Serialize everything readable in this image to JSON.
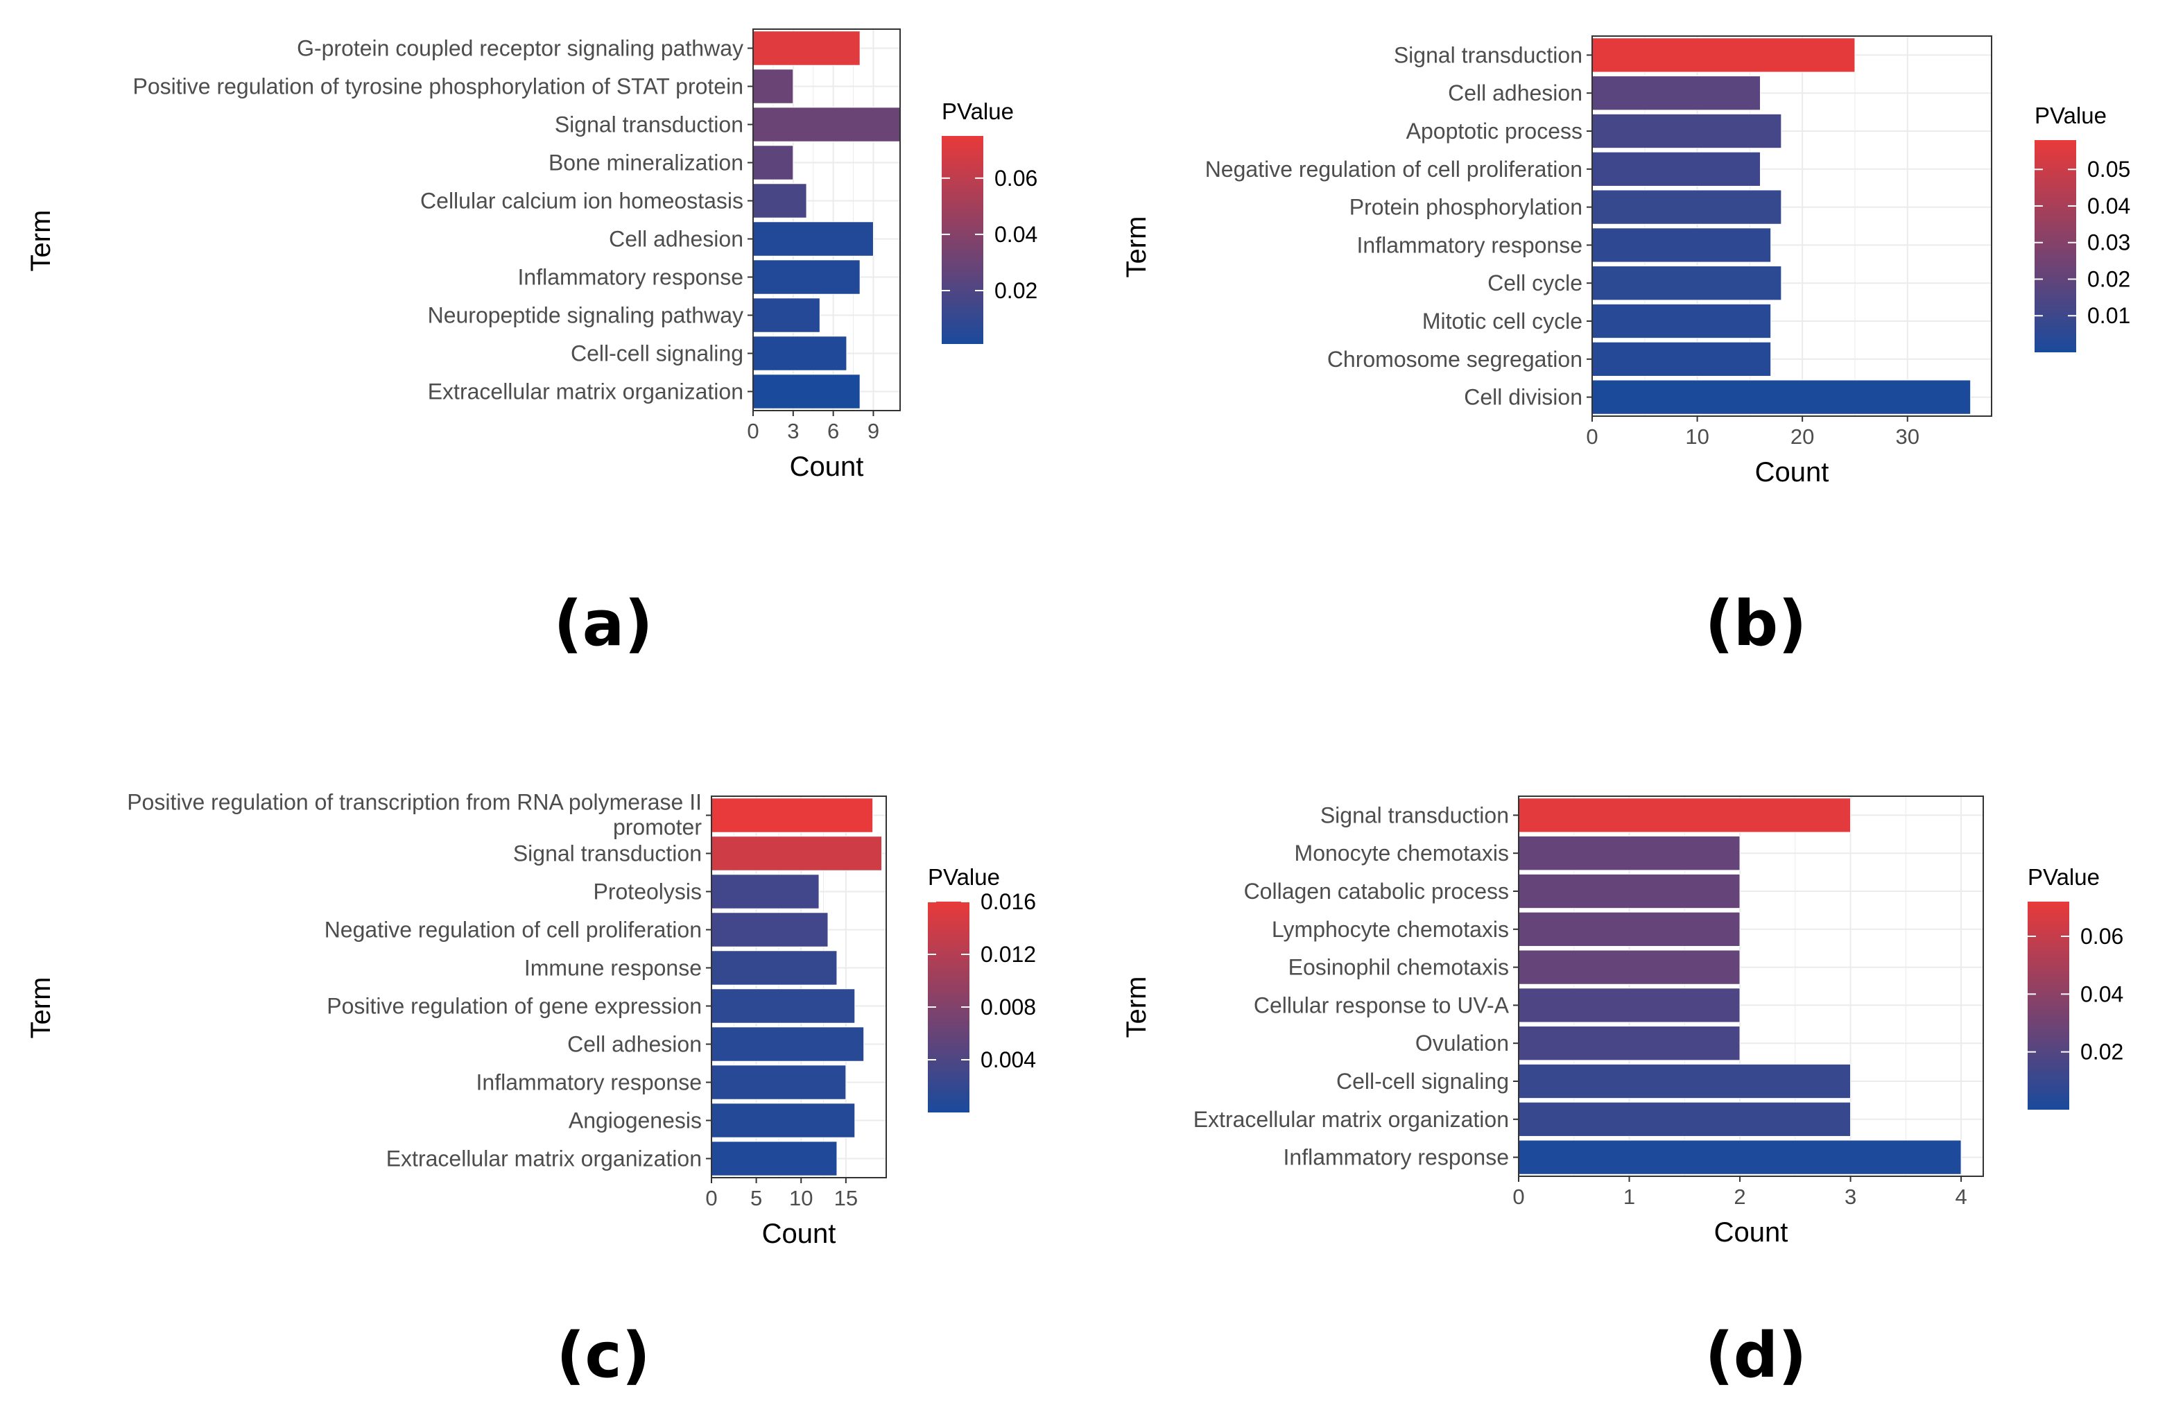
{
  "chart_data": [
    {
      "id": "a",
      "type": "bar",
      "orientation": "horizontal",
      "panel_label": "(a)",
      "xlabel": "Count",
      "ylabel": "Term",
      "xlim": [
        0,
        11
      ],
      "xticks": [
        0,
        3,
        6,
        9
      ],
      "grid": true,
      "legend": {
        "title": "PValue",
        "placement": "right",
        "ticks": [
          "0.06",
          "0.04",
          "0.02"
        ],
        "tick_values": [
          0.06,
          0.04,
          0.02
        ],
        "range": [
          0.001,
          0.075
        ]
      },
      "categories": [
        "G-protein coupled receptor signaling pathway",
        "Positive regulation of tyrosine phosphorylation of STAT protein",
        "Signal transduction",
        "Bone mineralization",
        "Cellular calcium ion homeostasis",
        "Cell adhesion",
        "Inflammatory response",
        "Neuropeptide signaling pathway",
        "Cell-cell signaling",
        "Extracellular matrix organization"
      ],
      "values": [
        8,
        3,
        11,
        3,
        4,
        9,
        8,
        5,
        7,
        8
      ],
      "pvalues": [
        0.072,
        0.03,
        0.03,
        0.025,
        0.018,
        0.004,
        0.004,
        0.005,
        0.003,
        0.001
      ]
    },
    {
      "id": "b",
      "type": "bar",
      "orientation": "horizontal",
      "panel_label": "(b)",
      "xlabel": "Count",
      "ylabel": "Term",
      "xlim": [
        0,
        38
      ],
      "xticks": [
        0,
        10,
        20,
        30
      ],
      "grid": true,
      "legend": {
        "title": "PValue",
        "placement": "right",
        "ticks": [
          "0.05",
          "0.04",
          "0.03",
          "0.02",
          "0.01"
        ],
        "tick_values": [
          0.05,
          0.04,
          0.03,
          0.02,
          0.01
        ],
        "range": [
          0.0,
          0.058
        ]
      },
      "categories": [
        "Signal transduction",
        "Cell adhesion",
        "Apoptotic process",
        "Negative regulation of cell proliferation",
        "Protein phosphorylation",
        "Inflammatory response",
        "Cell cycle",
        "Mitotic cell cycle",
        "Chromosome segregation",
        "Cell division"
      ],
      "values": [
        25,
        16,
        18,
        16,
        18,
        17,
        18,
        17,
        17,
        36
      ],
      "pvalues": [
        0.057,
        0.018,
        0.012,
        0.01,
        0.008,
        0.006,
        0.005,
        0.004,
        0.003,
        0.0005
      ]
    },
    {
      "id": "c",
      "type": "bar",
      "orientation": "horizontal",
      "panel_label": "(c)",
      "xlabel": "Count",
      "ylabel": "Term",
      "xlim": [
        0,
        19.5
      ],
      "xticks": [
        0,
        5,
        10,
        15
      ],
      "grid": true,
      "legend": {
        "title": "PValue",
        "placement": "right",
        "ticks": [
          "0.016",
          "0.012",
          "0.008",
          "0.004"
        ],
        "tick_values": [
          0.016,
          0.012,
          0.008,
          0.004
        ],
        "range": [
          0.0,
          0.016
        ]
      },
      "categories": [
        "Positive regulation of transcription from RNA polymerase II promoter",
        "Signal transduction",
        "Proteolysis",
        "Negative regulation of cell proliferation",
        "Immune response",
        "Positive regulation of gene expression",
        "Cell adhesion",
        "Inflammatory response",
        "Angiogenesis",
        "Extracellular matrix organization"
      ],
      "label_lines": [
        [
          "Positive regulation of transcription from RNA polymerase II",
          "promoter"
        ]
      ],
      "values": [
        18,
        19,
        12,
        13,
        14,
        16,
        17,
        15,
        16,
        14
      ],
      "pvalues": [
        0.016,
        0.014,
        0.003,
        0.003,
        0.002,
        0.0015,
        0.001,
        0.001,
        0.0008,
        0.0005
      ]
    },
    {
      "id": "d",
      "type": "bar",
      "orientation": "horizontal",
      "panel_label": "(d)",
      "xlabel": "Count",
      "ylabel": "Term",
      "xlim": [
        0,
        4.2
      ],
      "xticks": [
        0,
        1,
        2,
        3,
        4
      ],
      "grid": true,
      "legend": {
        "title": "PValue",
        "placement": "right",
        "ticks": [
          "0.06",
          "0.04",
          "0.02"
        ],
        "tick_values": [
          0.06,
          0.04,
          0.02
        ],
        "range": [
          0.0,
          0.072
        ]
      },
      "categories": [
        "Signal transduction",
        "Monocyte chemotaxis",
        "Collagen catabolic process",
        "Lymphocyte chemotaxis",
        "Eosinophil chemotaxis",
        "Cellular response to UV-A",
        "Ovulation",
        "Cell-cell signaling",
        "Extracellular matrix organization",
        "Inflammatory response"
      ],
      "values": [
        3,
        2,
        2,
        2,
        2,
        2,
        2,
        3,
        3,
        4
      ],
      "pvalues": [
        0.07,
        0.026,
        0.026,
        0.026,
        0.026,
        0.018,
        0.016,
        0.01,
        0.01,
        0.001
      ]
    }
  ],
  "colors": {
    "low": "#1a4a9c",
    "high": "#e83a3a",
    "grid": "#ebebeb",
    "frame": "#333333",
    "text": "#4d4d4d"
  }
}
